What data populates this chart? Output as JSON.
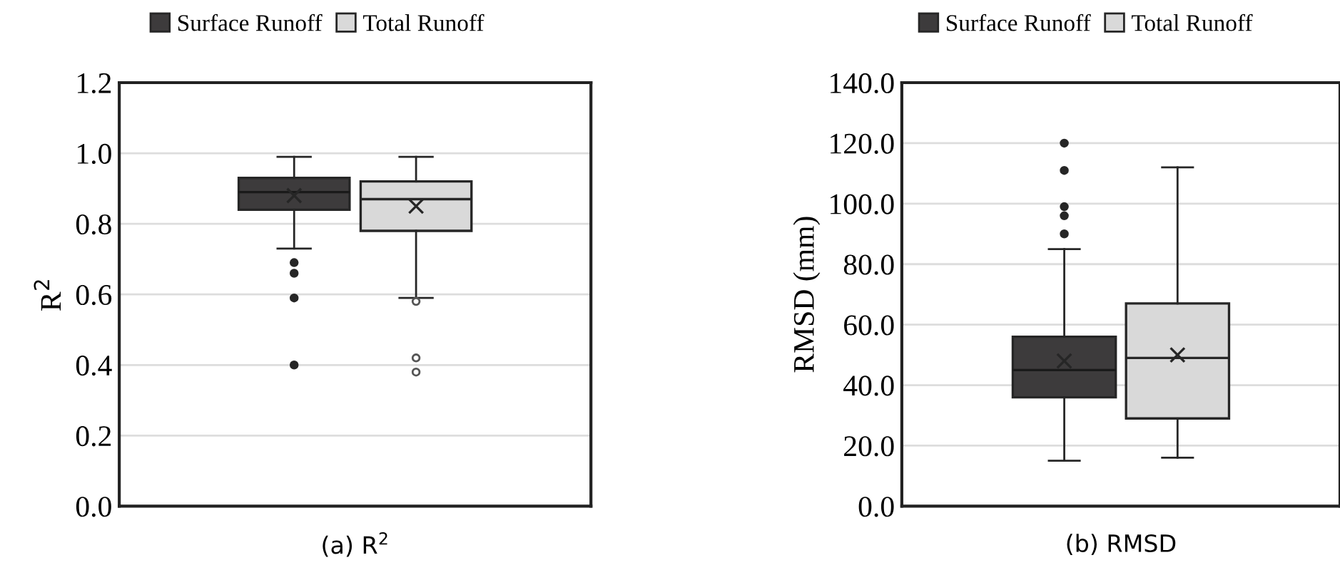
{
  "chart_data": [
    {
      "type": "box",
      "xlabel": "(a) R$^{2}$",
      "ylabel": "R$^{2}$",
      "categories": [
        null
      ],
      "ylim": [
        0,
        1.2
      ],
      "yticks": [
        {
          "value": 0,
          "label": "0.0"
        },
        {
          "value": 0.2,
          "label": "0.2"
        },
        {
          "value": 0.4,
          "label": "0.4"
        },
        {
          "value": 0.6,
          "label": "0.6"
        },
        {
          "value": 0.8,
          "label": "0.8"
        },
        {
          "value": 1.0,
          "label": "1.0"
        },
        {
          "value": 1.2,
          "label": "1.2"
        }
      ],
      "grid": "y",
      "legend": "top",
      "tick_labels": "y",
      "series": [
        {
          "name": "Surface Runoff",
          "color": "#3d3b3c",
          "boxes": [
            {
              "low": 0.73,
              "q1": 0.84,
              "median": 0.89,
              "q3": 0.93,
              "high": 0.99,
              "mean": 0.88,
              "outliers": [
                0.69,
                0.66,
                0.59,
                0.4
              ]
            }
          ]
        },
        {
          "name": "Total Runoff",
          "color": "#d9d9d9",
          "boxes": [
            {
              "low": 0.59,
              "q1": 0.78,
              "median": 0.87,
              "q3": 0.92,
              "high": 0.99,
              "mean": 0.85,
              "outliers": [
                0.58,
                0.42,
                0.38
              ]
            }
          ]
        }
      ]
    },
    {
      "type": "box",
      "xlabel": "(b) RMSD",
      "ylabel": "RMSD (mm)",
      "categories": [
        null
      ],
      "ylim": [
        0,
        140
      ],
      "yticks": [
        {
          "value": 0,
          "label": "0.0"
        },
        {
          "value": 20,
          "label": "20.0"
        },
        {
          "value": 40,
          "label": "40.0"
        },
        {
          "value": 60,
          "label": "60.0"
        },
        {
          "value": 80,
          "label": "80.0"
        },
        {
          "value": 100,
          "label": "100.0"
        },
        {
          "value": 120,
          "label": "120.0"
        },
        {
          "value": 140,
          "label": "140.0"
        }
      ],
      "grid": "y",
      "legend": "top",
      "tick_labels": "y",
      "series": [
        {
          "name": "Surface Runoff",
          "color": "#3d3b3c",
          "boxes": [
            {
              "low": 15,
              "q1": 36,
              "median": 45,
              "q3": 56,
              "high": 85,
              "mean": 48,
              "outliers": [
                120,
                111,
                99,
                96,
                90
              ]
            }
          ]
        },
        {
          "name": "Total Runoff",
          "color": "#d9d9d9",
          "boxes": [
            {
              "low": 16,
              "q1": 29,
              "median": 49,
              "q3": 67,
              "high": 112,
              "mean": 50
            }
          ]
        }
      ]
    }
  ]
}
